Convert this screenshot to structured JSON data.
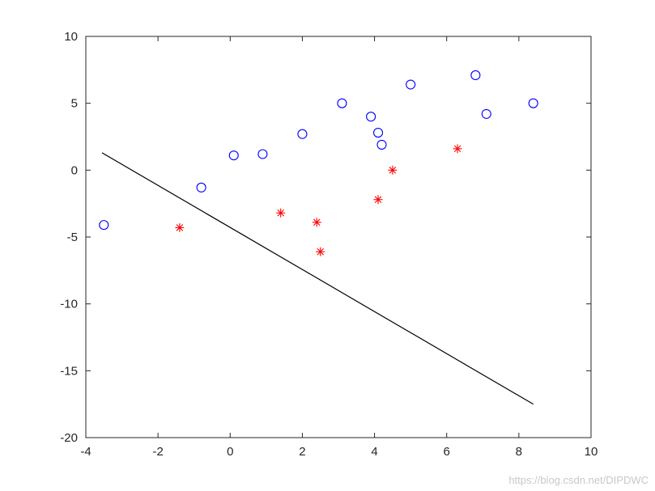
{
  "chart_data": {
    "type": "scatter",
    "xlim": [
      -4,
      10
    ],
    "ylim": [
      -20,
      10
    ],
    "xticks": [
      -4,
      -2,
      0,
      2,
      4,
      6,
      8,
      10
    ],
    "yticks": [
      -20,
      -15,
      -10,
      -5,
      0,
      5,
      10
    ],
    "grid": false,
    "series": [
      {
        "marker": "circle",
        "color": "#0000ff",
        "points": [
          [
            -3.5,
            -4.1
          ],
          [
            -0.8,
            -1.3
          ],
          [
            0.1,
            1.1
          ],
          [
            0.9,
            1.2
          ],
          [
            2.0,
            2.7
          ],
          [
            3.1,
            5.0
          ],
          [
            3.9,
            4.0
          ],
          [
            4.1,
            2.8
          ],
          [
            4.2,
            1.9
          ],
          [
            5.0,
            6.4
          ],
          [
            6.8,
            7.1
          ],
          [
            7.1,
            4.2
          ],
          [
            8.4,
            5.0
          ]
        ]
      },
      {
        "marker": "asterisk",
        "color": "#ff0000",
        "points": [
          [
            -1.4,
            -4.3
          ],
          [
            1.4,
            -3.2
          ],
          [
            2.4,
            -3.9
          ],
          [
            2.5,
            -6.1
          ],
          [
            4.1,
            -2.2
          ],
          [
            4.5,
            0.0
          ],
          [
            6.3,
            1.6
          ]
        ]
      }
    ],
    "line": {
      "color": "#000000",
      "points": [
        [
          -3.55,
          1.3
        ],
        [
          8.4,
          -17.5
        ]
      ]
    }
  },
  "watermark": "https://blog.csdn.net/DIPDWC"
}
